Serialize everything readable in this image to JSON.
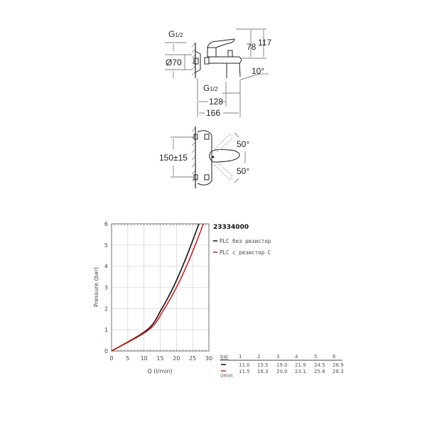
{
  "drawing": {
    "side_view": {
      "thread_top": "G",
      "thread_frac": "1/2",
      "diameter": "Ø70",
      "height_78": "78",
      "height_117": "117",
      "angle": "10°",
      "thread_bottom": "G",
      "depth_128": "128",
      "depth_166": "166"
    },
    "top_view": {
      "spacing": "150±15",
      "angle_up": "50°",
      "angle_down": "50°"
    }
  },
  "chart_data": {
    "type": "line",
    "title": "23334000",
    "xlabel": "Q (l/min)",
    "ylabel": "Pressure (bar)",
    "xlim": [
      0,
      30
    ],
    "ylim": [
      0,
      6
    ],
    "x_ticks": [
      "0",
      "5",
      "10",
      "15",
      "20",
      "25",
      "30"
    ],
    "y_ticks": [
      "0",
      "1",
      "2",
      "3",
      "4",
      "5",
      "6"
    ],
    "grid": true,
    "legend_position": "right",
    "series": [
      {
        "name": "PLC без резистор",
        "color": "#111111",
        "pressure": [
          0,
          1,
          2,
          3,
          4,
          5,
          6
        ],
        "flow": [
          0,
          11.0,
          15.5,
          19.0,
          21.9,
          24.5,
          26.9
        ]
      },
      {
        "name": "PLC с резистор С",
        "color": "#d42020",
        "pressure": [
          0,
          1,
          2,
          3,
          4,
          5,
          6
        ],
        "flow": [
          0,
          11.5,
          16.3,
          20.0,
          23.1,
          25.8,
          28.3
        ]
      }
    ],
    "table": {
      "header_label": "bar",
      "unit_label": "l/min",
      "pressures": [
        "1",
        "2",
        "3",
        "4",
        "5",
        "6"
      ],
      "rows": [
        [
          "11.0",
          "15.5",
          "19.0",
          "21.9",
          "24.5",
          "26.9"
        ],
        [
          "11.5",
          "16.3",
          "20.0",
          "23.1",
          "25.8",
          "28.3"
        ]
      ]
    }
  }
}
